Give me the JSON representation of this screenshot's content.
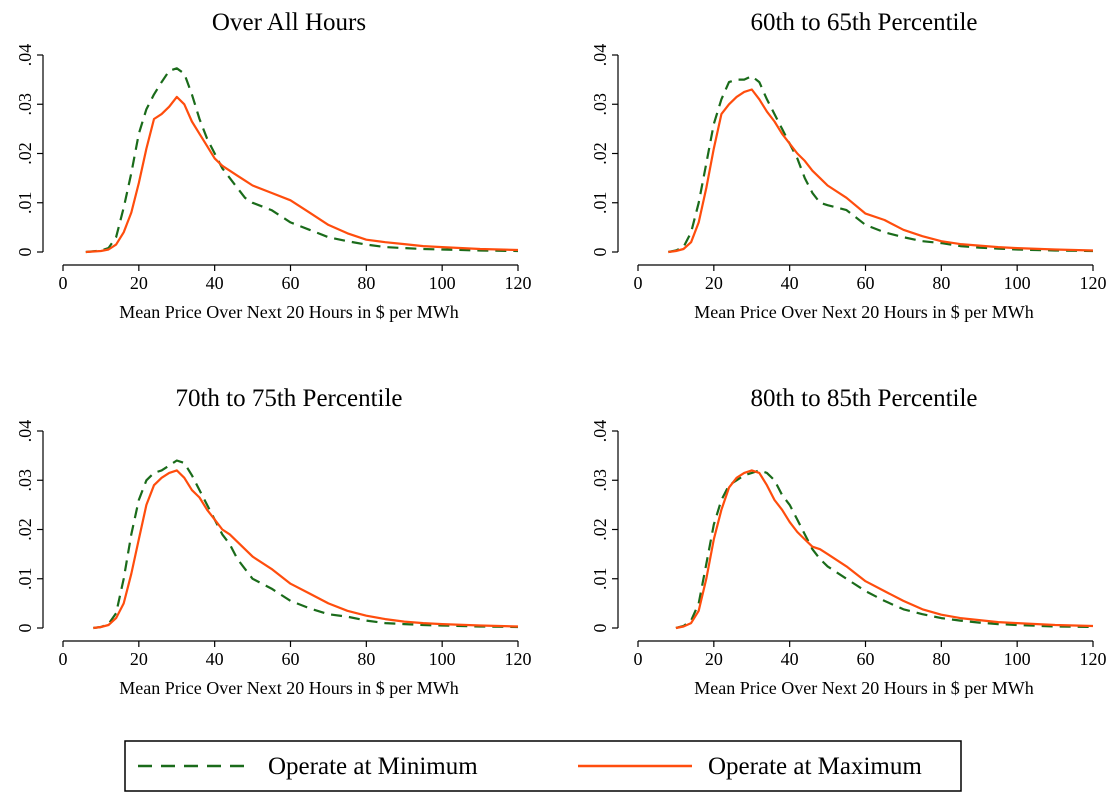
{
  "colors": {
    "minimum": "#1a6b1a",
    "maximum": "#ff4d0d",
    "axis": "#000000"
  },
  "chart_data": [
    {
      "type": "line",
      "title": "Over All Hours",
      "xlabel": "Mean Price Over Next 20 Hours in $ per MWh",
      "ylabel": "",
      "xlim": [
        0,
        120
      ],
      "ylim": [
        0,
        0.04
      ],
      "xticks": [
        0,
        20,
        40,
        60,
        80,
        100,
        120
      ],
      "xtick_labels": [
        "0",
        "20",
        "40",
        "60",
        "80",
        "100",
        "120"
      ],
      "yticks": [
        0,
        0.01,
        0.02,
        0.03,
        0.04
      ],
      "ytick_labels": [
        "0",
        ".01",
        ".02",
        ".03",
        ".04"
      ],
      "grid": false,
      "series": [
        {
          "name": "Operate at Minimum",
          "style": "dashed",
          "x": [
            6,
            10,
            12,
            14,
            16,
            18,
            20,
            22,
            24,
            26,
            28,
            30,
            32,
            34,
            36,
            38,
            40,
            42,
            44,
            46,
            48,
            50,
            55,
            60,
            65,
            70,
            75,
            80,
            85,
            90,
            95,
            100,
            110,
            120
          ],
          "y": [
            0,
            0.0003,
            0.0008,
            0.003,
            0.009,
            0.016,
            0.024,
            0.029,
            0.032,
            0.0345,
            0.0368,
            0.0373,
            0.0362,
            0.032,
            0.027,
            0.023,
            0.02,
            0.017,
            0.015,
            0.013,
            0.011,
            0.01,
            0.0085,
            0.006,
            0.0045,
            0.003,
            0.0022,
            0.0015,
            0.001,
            0.0008,
            0.0006,
            0.0005,
            0.0003,
            0.0002
          ]
        },
        {
          "name": "Operate at Maximum",
          "style": "solid",
          "x": [
            6,
            10,
            12,
            14,
            16,
            18,
            20,
            22,
            24,
            26,
            28,
            30,
            32,
            34,
            36,
            38,
            40,
            42,
            44,
            46,
            48,
            50,
            55,
            60,
            65,
            70,
            75,
            80,
            85,
            90,
            95,
            100,
            110,
            120
          ],
          "y": [
            0,
            0.0002,
            0.0005,
            0.0015,
            0.004,
            0.008,
            0.014,
            0.021,
            0.027,
            0.028,
            0.0295,
            0.0315,
            0.03,
            0.0265,
            0.024,
            0.0215,
            0.019,
            0.0175,
            0.0165,
            0.0155,
            0.0145,
            0.0135,
            0.012,
            0.0105,
            0.008,
            0.0055,
            0.0038,
            0.0025,
            0.002,
            0.0016,
            0.0012,
            0.001,
            0.0006,
            0.0004
          ]
        }
      ]
    },
    {
      "type": "line",
      "title": "60th to 65th Percentile",
      "xlabel": "Mean Price Over Next 20 Hours in $ per MWh",
      "ylabel": "",
      "xlim": [
        0,
        120
      ],
      "ylim": [
        0,
        0.04
      ],
      "xticks": [
        0,
        20,
        40,
        60,
        80,
        100,
        120
      ],
      "xtick_labels": [
        "0",
        "20",
        "40",
        "60",
        "80",
        "100",
        "120"
      ],
      "yticks": [
        0,
        0.01,
        0.02,
        0.03,
        0.04
      ],
      "ytick_labels": [
        "0",
        ".01",
        ".02",
        ".03",
        ".04"
      ],
      "grid": false,
      "series": [
        {
          "name": "Operate at Minimum",
          "style": "dashed",
          "x": [
            8,
            10,
            12,
            14,
            16,
            18,
            20,
            22,
            24,
            26,
            28,
            30,
            32,
            34,
            36,
            38,
            40,
            42,
            44,
            46,
            48,
            50,
            55,
            60,
            65,
            70,
            75,
            80,
            85,
            90,
            95,
            100,
            110,
            120
          ],
          "y": [
            0,
            0.0003,
            0.001,
            0.004,
            0.01,
            0.018,
            0.026,
            0.031,
            0.0345,
            0.035,
            0.035,
            0.0357,
            0.0345,
            0.031,
            0.028,
            0.025,
            0.022,
            0.019,
            0.015,
            0.012,
            0.01,
            0.0095,
            0.0085,
            0.0055,
            0.004,
            0.003,
            0.0022,
            0.0018,
            0.0012,
            0.0009,
            0.0007,
            0.0005,
            0.0003,
            0.0002
          ]
        },
        {
          "name": "Operate at Maximum",
          "style": "solid",
          "x": [
            8,
            10,
            12,
            14,
            16,
            18,
            20,
            22,
            24,
            26,
            28,
            30,
            32,
            34,
            36,
            38,
            40,
            42,
            44,
            46,
            48,
            50,
            55,
            60,
            65,
            70,
            75,
            80,
            85,
            90,
            95,
            100,
            110,
            120
          ],
          "y": [
            0,
            0.0002,
            0.0006,
            0.002,
            0.006,
            0.013,
            0.021,
            0.028,
            0.03,
            0.0315,
            0.0325,
            0.033,
            0.031,
            0.0285,
            0.0265,
            0.024,
            0.022,
            0.02,
            0.0185,
            0.0165,
            0.015,
            0.0135,
            0.011,
            0.0078,
            0.0065,
            0.0045,
            0.0032,
            0.0022,
            0.0016,
            0.0013,
            0.001,
            0.0008,
            0.0005,
            0.0003
          ]
        }
      ]
    },
    {
      "type": "line",
      "title": "70th to 75th Percentile",
      "xlabel": "Mean Price Over Next 20 Hours in $ per MWh",
      "ylabel": "",
      "xlim": [
        0,
        120
      ],
      "ylim": [
        0,
        0.04
      ],
      "xticks": [
        0,
        20,
        40,
        60,
        80,
        100,
        120
      ],
      "xtick_labels": [
        "0",
        "20",
        "40",
        "60",
        "80",
        "100",
        "120"
      ],
      "yticks": [
        0,
        0.01,
        0.02,
        0.03,
        0.04
      ],
      "ytick_labels": [
        "0",
        ".01",
        ".02",
        ".03",
        ".04"
      ],
      "grid": false,
      "series": [
        {
          "name": "Operate at Minimum",
          "style": "dashed",
          "x": [
            8,
            10,
            12,
            14,
            16,
            18,
            20,
            22,
            24,
            26,
            28,
            30,
            32,
            34,
            36,
            38,
            40,
            42,
            44,
            46,
            48,
            50,
            55,
            60,
            65,
            70,
            75,
            80,
            85,
            90,
            95,
            100,
            110,
            120
          ],
          "y": [
            0,
            0.0002,
            0.0008,
            0.003,
            0.01,
            0.019,
            0.026,
            0.03,
            0.0315,
            0.032,
            0.033,
            0.034,
            0.0335,
            0.031,
            0.028,
            0.025,
            0.022,
            0.019,
            0.017,
            0.014,
            0.012,
            0.01,
            0.008,
            0.0055,
            0.004,
            0.0028,
            0.0023,
            0.0015,
            0.001,
            0.0008,
            0.0006,
            0.0005,
            0.0003,
            0.0002
          ]
        },
        {
          "name": "Operate at Maximum",
          "style": "solid",
          "x": [
            8,
            10,
            12,
            14,
            16,
            18,
            20,
            22,
            24,
            26,
            28,
            30,
            32,
            34,
            36,
            38,
            40,
            42,
            44,
            46,
            48,
            50,
            55,
            60,
            65,
            70,
            75,
            80,
            85,
            90,
            95,
            100,
            110,
            120
          ],
          "y": [
            0,
            0.0002,
            0.0006,
            0.002,
            0.005,
            0.011,
            0.018,
            0.025,
            0.029,
            0.0305,
            0.0315,
            0.032,
            0.0305,
            0.028,
            0.0265,
            0.024,
            0.022,
            0.02,
            0.019,
            0.0175,
            0.016,
            0.0145,
            0.012,
            0.009,
            0.007,
            0.005,
            0.0035,
            0.0025,
            0.0018,
            0.0013,
            0.001,
            0.0008,
            0.0005,
            0.0003
          ]
        }
      ]
    },
    {
      "type": "line",
      "title": "80th to 85th Percentile",
      "xlabel": "Mean Price Over Next 20 Hours in $ per MWh",
      "ylabel": "",
      "xlim": [
        0,
        120
      ],
      "ylim": [
        0,
        0.04
      ],
      "xticks": [
        0,
        20,
        40,
        60,
        80,
        100,
        120
      ],
      "xtick_labels": [
        "0",
        "20",
        "40",
        "60",
        "80",
        "100",
        "120"
      ],
      "yticks": [
        0,
        0.01,
        0.02,
        0.03,
        0.04
      ],
      "ytick_labels": [
        "0",
        ".01",
        ".02",
        ".03",
        ".04"
      ],
      "grid": false,
      "series": [
        {
          "name": "Operate at Minimum",
          "style": "dashed",
          "x": [
            10,
            12,
            14,
            16,
            18,
            20,
            22,
            24,
            26,
            28,
            30,
            32,
            34,
            36,
            38,
            40,
            42,
            44,
            46,
            48,
            50,
            55,
            60,
            65,
            70,
            75,
            80,
            85,
            90,
            95,
            100,
            110,
            120
          ],
          "y": [
            0,
            0.0004,
            0.0015,
            0.005,
            0.013,
            0.021,
            0.026,
            0.029,
            0.03,
            0.031,
            0.0315,
            0.032,
            0.0315,
            0.03,
            0.027,
            0.025,
            0.022,
            0.019,
            0.016,
            0.014,
            0.0125,
            0.01,
            0.0075,
            0.0055,
            0.0038,
            0.0028,
            0.002,
            0.0015,
            0.0011,
            0.0008,
            0.0006,
            0.0003,
            0.0002
          ]
        },
        {
          "name": "Operate at Maximum",
          "style": "solid",
          "x": [
            10,
            12,
            14,
            16,
            18,
            20,
            22,
            24,
            26,
            28,
            30,
            32,
            34,
            36,
            38,
            40,
            42,
            44,
            46,
            48,
            50,
            55,
            60,
            65,
            70,
            75,
            80,
            85,
            90,
            95,
            100,
            110,
            120
          ],
          "y": [
            0,
            0.0003,
            0.001,
            0.0035,
            0.01,
            0.018,
            0.024,
            0.0285,
            0.0305,
            0.0315,
            0.032,
            0.0315,
            0.029,
            0.026,
            0.024,
            0.0215,
            0.0195,
            0.018,
            0.0165,
            0.016,
            0.015,
            0.0125,
            0.0095,
            0.0075,
            0.0055,
            0.0038,
            0.0027,
            0.002,
            0.0016,
            0.0012,
            0.001,
            0.0006,
            0.0004
          ]
        }
      ]
    }
  ],
  "legend": {
    "items": [
      {
        "label": "Operate at Minimum",
        "style": "dashed"
      },
      {
        "label": "Operate at Maximum",
        "style": "solid"
      }
    ]
  }
}
